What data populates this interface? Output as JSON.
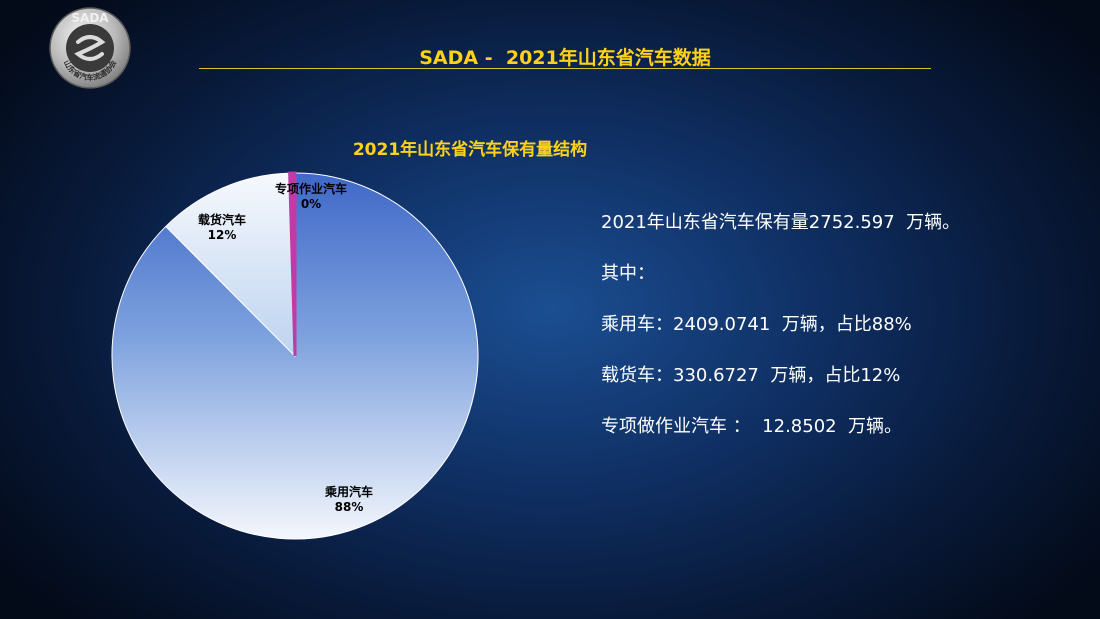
{
  "logo": {
    "title": "SADA",
    "subtitle": "山东省汽车流通协会"
  },
  "header": {
    "title": "SADA -  2021年山东省汽车数据"
  },
  "chart_data": {
    "type": "pie",
    "title": "2021年山东省汽车保有量结构",
    "slices": [
      {
        "name": "乘用汽车",
        "label": "88%",
        "value": 2409.0741,
        "color": "#4470cc"
      },
      {
        "name": "载货汽车",
        "label": "12%",
        "value": 330.6727,
        "color": "#e6eefa"
      },
      {
        "name": "专项作业汽车",
        "label": "0%",
        "value": 12.8502,
        "color": "#c23aa6"
      }
    ]
  },
  "info": {
    "lines": [
      "2021年山东省汽车保有量2752.597  万辆。",
      "其中：",
      "乘用车：2409.0741  万辆，占比88%",
      "载货车：330.6727  万辆，占比12%",
      "专项做作业汽车 ：  12.8502  万辆。"
    ]
  }
}
